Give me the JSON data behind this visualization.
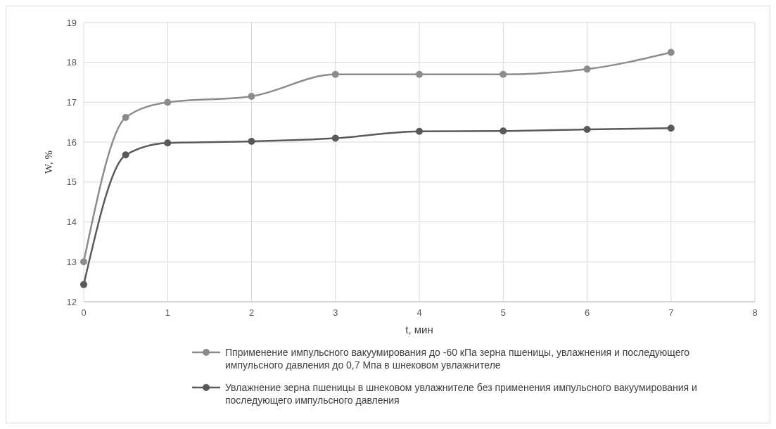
{
  "chart_data": {
    "type": "line",
    "xlabel": "t, мин",
    "ylabel": "W, %",
    "x": [
      0,
      0.5,
      1,
      2,
      3,
      4,
      5,
      6,
      7
    ],
    "xlim": [
      0,
      8
    ],
    "xticks": [
      0,
      1,
      2,
      3,
      4,
      5,
      6,
      7,
      8
    ],
    "ylim": [
      12,
      19
    ],
    "yticks": [
      12,
      13,
      14,
      15,
      16,
      17,
      18,
      19
    ],
    "grid": true,
    "legend": "bottom",
    "marker": "circle",
    "line_style": "solid",
    "series": [
      {
        "name": "Пприменение импульсного вакуумирования до -60 кПа зерна пшеницы, увлажнения и последующего импульсного давления до 0,7 Мпа в шнековом увлажнителе",
        "color": "#8c8c8c",
        "values": [
          13.0,
          16.62,
          17.0,
          17.15,
          17.7,
          17.7,
          17.7,
          17.83,
          18.25
        ]
      },
      {
        "name": "Увлажнение зерна пшеницы в шнековом увлажнителе без применения импульсного вакуумирования и последующего импульсного давления",
        "color": "#595959",
        "values": [
          12.43,
          15.68,
          15.98,
          16.02,
          16.1,
          16.27,
          16.28,
          16.32,
          16.35
        ]
      }
    ]
  }
}
